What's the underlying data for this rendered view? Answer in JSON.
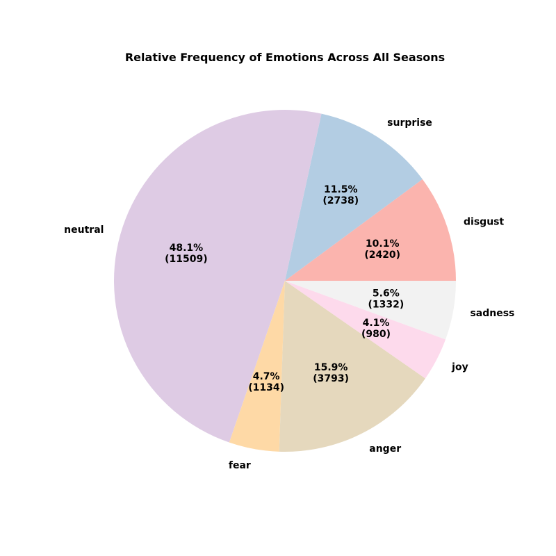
{
  "chart_data": {
    "type": "pie",
    "title": "Relative Frequency of Emotions Across All Seasons",
    "start_angle_deg": 0,
    "direction": "counterclockwise",
    "slices": [
      {
        "label": "disgust",
        "value": 2420,
        "percent_label": "10.1%",
        "count_label": "(2420)",
        "color": "#fbb4ae"
      },
      {
        "label": "surprise",
        "value": 2738,
        "percent_label": "11.5%",
        "count_label": "(2738)",
        "color": "#b3cde3"
      },
      {
        "label": "neutral",
        "value": 11509,
        "percent_label": "48.1%",
        "count_label": "(11509)",
        "color": "#decbe4"
      },
      {
        "label": "fear",
        "value": 1134,
        "percent_label": "4.7%",
        "count_label": "(1134)",
        "color": "#fed9a6"
      },
      {
        "label": "anger",
        "value": 3793,
        "percent_label": "15.9%",
        "count_label": "(3793)",
        "color": "#e5d8bd"
      },
      {
        "label": "joy",
        "value": 980,
        "percent_label": "4.1%",
        "count_label": "(980)",
        "color": "#fddaec"
      },
      {
        "label": "sadness",
        "value": 1332,
        "percent_label": "5.6%",
        "count_label": "(1332)",
        "color": "#f2f2f2"
      }
    ]
  }
}
